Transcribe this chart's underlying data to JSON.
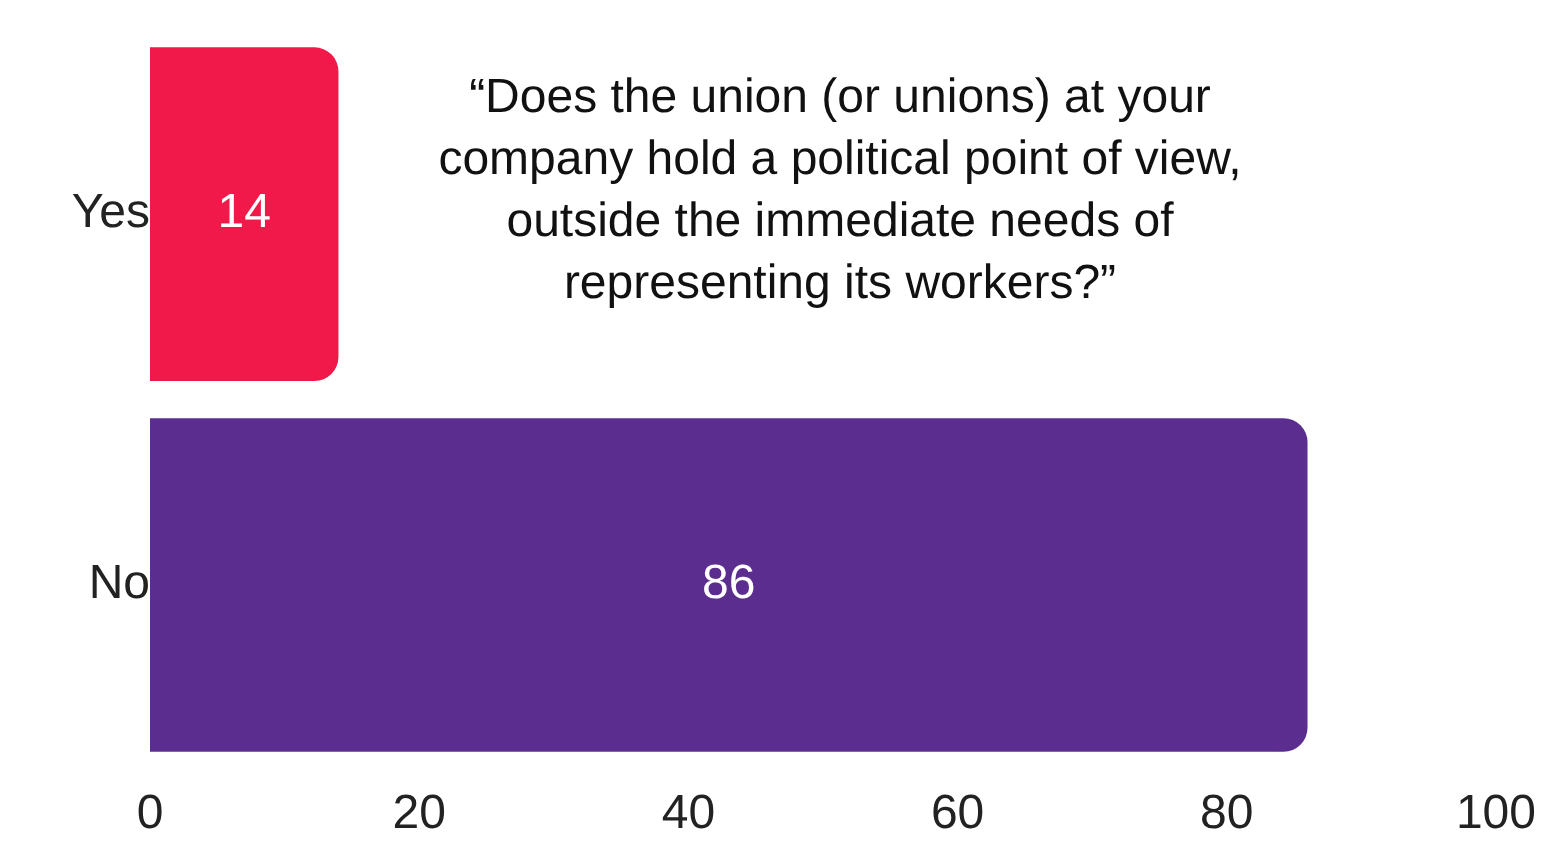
{
  "chart_data": {
    "type": "bar",
    "orientation": "horizontal",
    "title": "“Does the union (or unions) at your company hold a political point of view, outside the immediate needs of representing its workers?”",
    "categories": [
      "Yes",
      "No"
    ],
    "values": [
      14,
      86
    ],
    "colors": [
      "#f0194a",
      "#5b2d8e"
    ],
    "xlim": [
      0,
      100
    ],
    "xticks": [
      0,
      20,
      40,
      60,
      80,
      100
    ],
    "grid": false,
    "data_labels": true
  }
}
